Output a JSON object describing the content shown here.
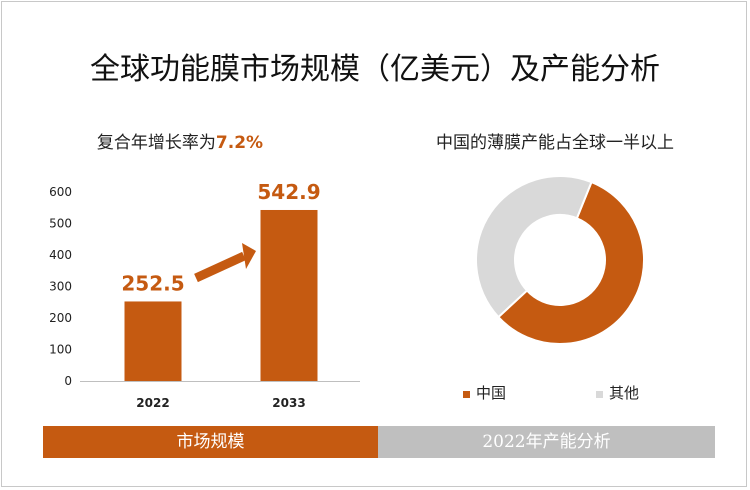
{
  "title": "全球功能膜市场规模（亿美元）及产能分析",
  "left_subtitle_prefix": "复合年增长率为",
  "left_subtitle_rate": "7.2%",
  "right_subtitle": "中国的薄膜产能占全球一半以上",
  "bands": {
    "left": "市场规模",
    "right": "2022年产能分析"
  },
  "colors": {
    "accent": "#c55a11",
    "gray": "#d9d9d9"
  },
  "chart_data": [
    {
      "type": "bar",
      "categories": [
        "2022",
        "2033"
      ],
      "values": [
        252.5,
        542.9
      ],
      "ylim": [
        0,
        600
      ],
      "yticks": [
        "0",
        "100",
        "200",
        "300",
        "400",
        "500",
        "600"
      ],
      "data_labels": [
        "252.5",
        "542.9"
      ]
    },
    {
      "type": "pie",
      "labels": [
        "中国",
        "其他"
      ],
      "values": [
        57,
        43
      ],
      "colors": [
        "#c55a11",
        "#d9d9d9"
      ]
    }
  ]
}
